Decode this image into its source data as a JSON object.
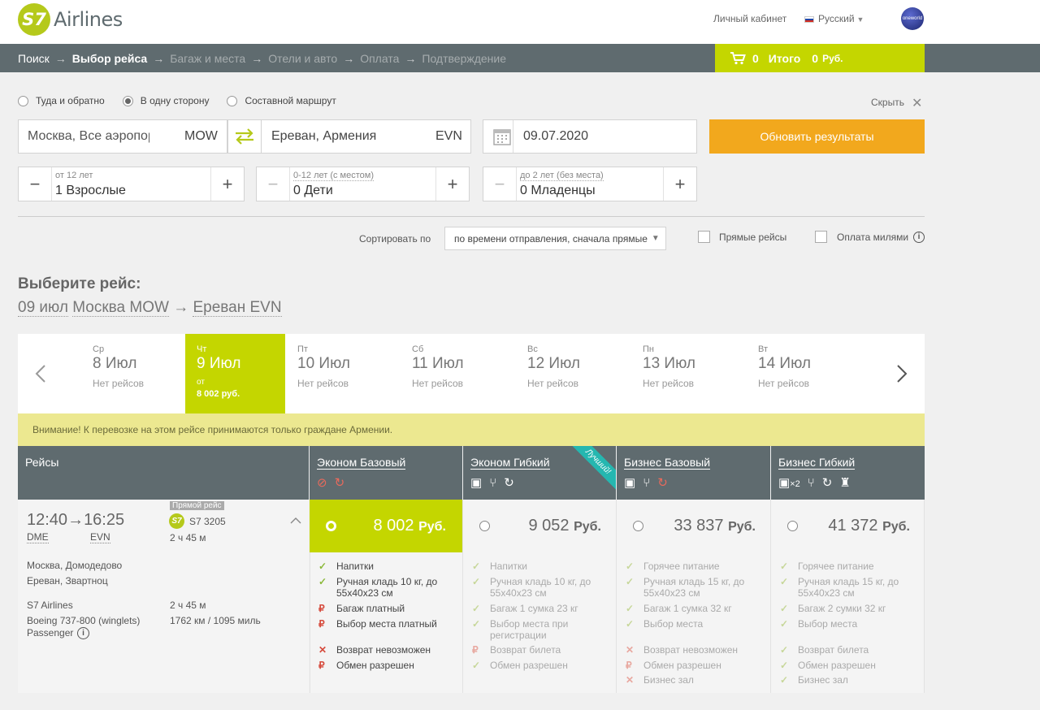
{
  "header": {
    "logo_mark": "S7",
    "logo_text": "Airlines",
    "account": "Личный кабинет",
    "language": "Русский",
    "alliance": "oneworld"
  },
  "steps": [
    {
      "label": "Поиск",
      "state": "done"
    },
    {
      "label": "Выбор рейса",
      "state": "current"
    },
    {
      "label": "Багаж и места",
      "state": "todo"
    },
    {
      "label": "Отели и авто",
      "state": "todo"
    },
    {
      "label": "Оплата",
      "state": "todo"
    },
    {
      "label": "Подтверждение",
      "state": "todo"
    }
  ],
  "cart": {
    "count": "0",
    "total_label": "Итого",
    "total": "0",
    "currency": "Руб."
  },
  "search": {
    "trip_types": [
      {
        "label": "Туда и обратно",
        "selected": false
      },
      {
        "label": "В одну сторону",
        "selected": true
      },
      {
        "label": "Составной маршрут",
        "selected": false
      }
    ],
    "hide": "Скрыть",
    "from": "Москва, Все аэропорты",
    "from_code": "MOW",
    "to": "Ереван, Армения",
    "to_code": "EVN",
    "date": "09.07.2020",
    "update_button": "Обновить результаты",
    "passengers": [
      {
        "hint": "от 12 лет",
        "value": "1 Взрослые"
      },
      {
        "hint": "0-12 лет (с местом)",
        "value": "0 Дети"
      },
      {
        "hint": "до 2 лет (без места)",
        "value": "0 Младенцы"
      }
    ],
    "sort_label": "Сортировать по",
    "sort_value": "по времени отправления, сначала прямые",
    "direct_only": "Прямые рейсы",
    "pay_miles": "Оплата милями"
  },
  "heading": {
    "title": "Выберите рейс:",
    "date": "09 июл",
    "from": "Москва MOW",
    "arrow": "→",
    "to": "Ереван EVN"
  },
  "dates": [
    {
      "weekday": "Ср",
      "date": "8 Июл",
      "note": "Нет рейсов",
      "price": "",
      "selected": false
    },
    {
      "weekday": "Чт",
      "date": "9 Июл",
      "note": "от",
      "price": "8 002 руб.",
      "selected": true
    },
    {
      "weekday": "Пт",
      "date": "10 Июл",
      "note": "Нет рейсов",
      "price": "",
      "selected": false
    },
    {
      "weekday": "Сб",
      "date": "11 Июл",
      "note": "Нет рейсов",
      "price": "",
      "selected": false
    },
    {
      "weekday": "Вс",
      "date": "12 Июл",
      "note": "Нет рейсов",
      "price": "",
      "selected": false
    },
    {
      "weekday": "Пн",
      "date": "13 Июл",
      "note": "Нет рейсов",
      "price": "",
      "selected": false
    },
    {
      "weekday": "Вт",
      "date": "14 Июл",
      "note": "Нет рейсов",
      "price": "",
      "selected": false
    }
  ],
  "notice": "Внимание! К перевозке на этом рейсе принимаются только граждане Армении.",
  "table": {
    "flights_header": "Рейсы",
    "best_ribbon": "Лучший!",
    "fares": [
      {
        "name": "Эконом Базовый",
        "price": "8 002",
        "currency": "Руб.",
        "selected": true
      },
      {
        "name": "Эконом Гибкий",
        "price": "9 052",
        "currency": "Руб.",
        "selected": false
      },
      {
        "name": "Бизнес Базовый",
        "price": "33 837",
        "currency": "Руб.",
        "selected": false
      },
      {
        "name": "Бизнес Гибкий",
        "price": "41 372",
        "currency": "Руб.",
        "selected": false
      }
    ],
    "baggage_multiplier": "×2"
  },
  "flight": {
    "dep_time": "12:40",
    "arr_time": "16:25",
    "dep_code": "DME",
    "arr_code": "EVN",
    "badge": "Прямой рейс",
    "number": "S7 3205",
    "duration": "2 ч 45 м",
    "dep_airport": "Москва, Домодедово",
    "arr_airport": "Ереван, Звартноц",
    "carrier": "S7 Airlines",
    "carrier_duration": "2 ч 45 м",
    "aircraft": "Boeing 737-800 (winglets)",
    "distance": "1762 км / 1095 миль",
    "class_label": "Passenger"
  },
  "features": {
    "col1": [
      {
        "mark": "✓",
        "kind": "ok",
        "text": "Напитки"
      },
      {
        "mark": "✓",
        "kind": "ok",
        "text": "Ручная кладь 10 кг, до 55x40x23 см"
      },
      {
        "mark": "₽",
        "kind": "bad",
        "text": "Багаж платный"
      },
      {
        "mark": "₽",
        "kind": "bad",
        "text": "Выбор места платный"
      },
      {
        "mark": "✕",
        "kind": "bad",
        "text": "Возврат невозможен"
      },
      {
        "mark": "₽",
        "kind": "bad",
        "text": "Обмен разрешен"
      }
    ],
    "col2": [
      {
        "mark": "✓",
        "kind": "ok",
        "text": "Напитки"
      },
      {
        "mark": "✓",
        "kind": "ok",
        "text": "Ручная кладь 10 кг, до 55x40x23 см"
      },
      {
        "mark": "✓",
        "kind": "ok",
        "text": "Багаж 1 сумка 23 кг"
      },
      {
        "mark": "✓",
        "kind": "ok",
        "text": "Выбор места при регистрации"
      },
      {
        "mark": "₽",
        "kind": "bad",
        "text": "Возврат билета"
      },
      {
        "mark": "✓",
        "kind": "ok",
        "text": "Обмен разрешен"
      }
    ],
    "col3": [
      {
        "mark": "✓",
        "kind": "ok",
        "text": "Горячее питание"
      },
      {
        "mark": "✓",
        "kind": "ok",
        "text": "Ручная кладь 15 кг, до 55x40x23 см"
      },
      {
        "mark": "✓",
        "kind": "ok",
        "text": "Багаж 1 сумка 32 кг"
      },
      {
        "mark": "✓",
        "kind": "ok",
        "text": "Выбор места"
      },
      {
        "mark": "✕",
        "kind": "bad",
        "text": "Возврат невозможен"
      },
      {
        "mark": "₽",
        "kind": "bad",
        "text": "Обмен разрешен"
      },
      {
        "mark": "✕",
        "kind": "bad",
        "text": "Бизнес зал"
      }
    ],
    "col4": [
      {
        "mark": "✓",
        "kind": "ok",
        "text": "Горячее питание"
      },
      {
        "mark": "✓",
        "kind": "ok",
        "text": "Ручная кладь 15 кг, до 55x40x23 см"
      },
      {
        "mark": "✓",
        "kind": "ok",
        "text": "Багаж 2 сумки 32 кг"
      },
      {
        "mark": "✓",
        "kind": "ok",
        "text": "Выбор места"
      },
      {
        "mark": "✓",
        "kind": "ok",
        "text": "Возврат билета"
      },
      {
        "mark": "✓",
        "kind": "ok",
        "text": "Обмен разрешен"
      },
      {
        "mark": "✓",
        "kind": "ok",
        "text": "Бизнес зал"
      }
    ]
  },
  "colors": {
    "brand_green": "#c4d600",
    "accent_orange": "#f2a81d",
    "nav_gray": "#5f6b6f",
    "notice_yellow": "#ece890"
  }
}
